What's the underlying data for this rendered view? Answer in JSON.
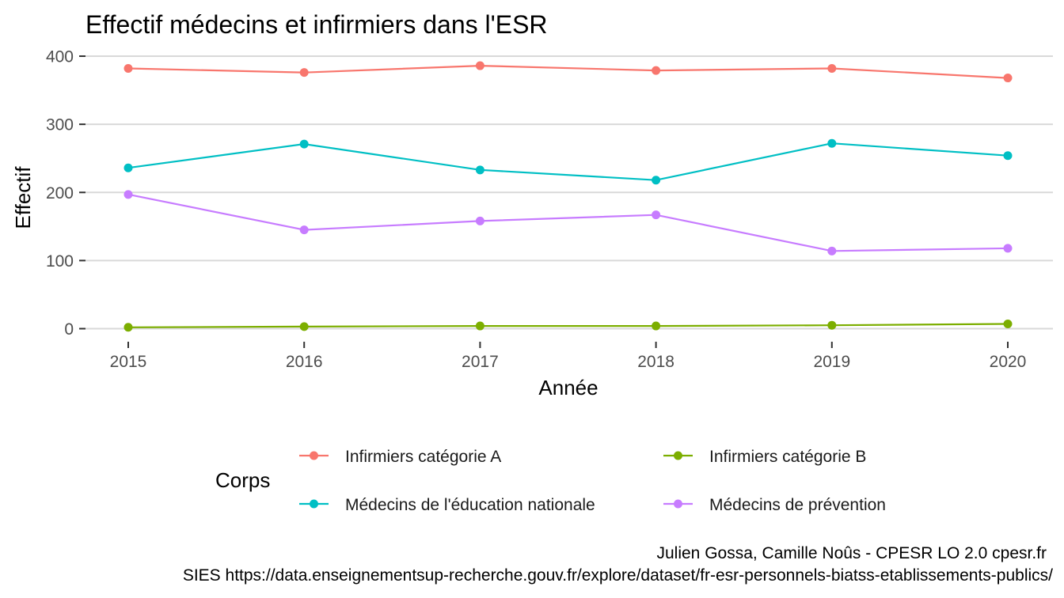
{
  "chart_data": {
    "type": "line",
    "title": "Effectif médecins et infirmiers dans l'ESR",
    "xlabel": "Année",
    "ylabel": "Effectif",
    "x": [
      2015,
      2016,
      2017,
      2018,
      2019,
      2020
    ],
    "x_ticks": [
      "2015",
      "2016",
      "2017",
      "2018",
      "2019",
      "2020"
    ],
    "y_ticks": [
      "0",
      "100",
      "200",
      "300",
      "400"
    ],
    "ylim": [
      0,
      400
    ],
    "grid": true,
    "legend_title": "Corps",
    "legend_position": "bottom",
    "series": [
      {
        "name": "Infirmiers catégorie A",
        "color": "#F8766D",
        "values": [
          382,
          376,
          386,
          379,
          382,
          368
        ]
      },
      {
        "name": "Infirmiers catégorie B",
        "color": "#7CAE00",
        "values": [
          2,
          3,
          4,
          4,
          5,
          7
        ]
      },
      {
        "name": "Médecins de l'éducation nationale",
        "color": "#00BFC4",
        "values": [
          236,
          271,
          233,
          218,
          272,
          254
        ]
      },
      {
        "name": "Médecins de prévention",
        "color": "#C77CFF",
        "values": [
          197,
          145,
          158,
          167,
          114,
          118
        ]
      }
    ],
    "caption_line1": "Julien Gossa, Camille Noûs - CPESR LO 2.0 cpesr.fr ",
    "caption_line2": "SIES https://data.enseignementsup-recherche.gouv.fr/explore/dataset/fr-esr-personnels-biatss-etablissements-publics/"
  }
}
